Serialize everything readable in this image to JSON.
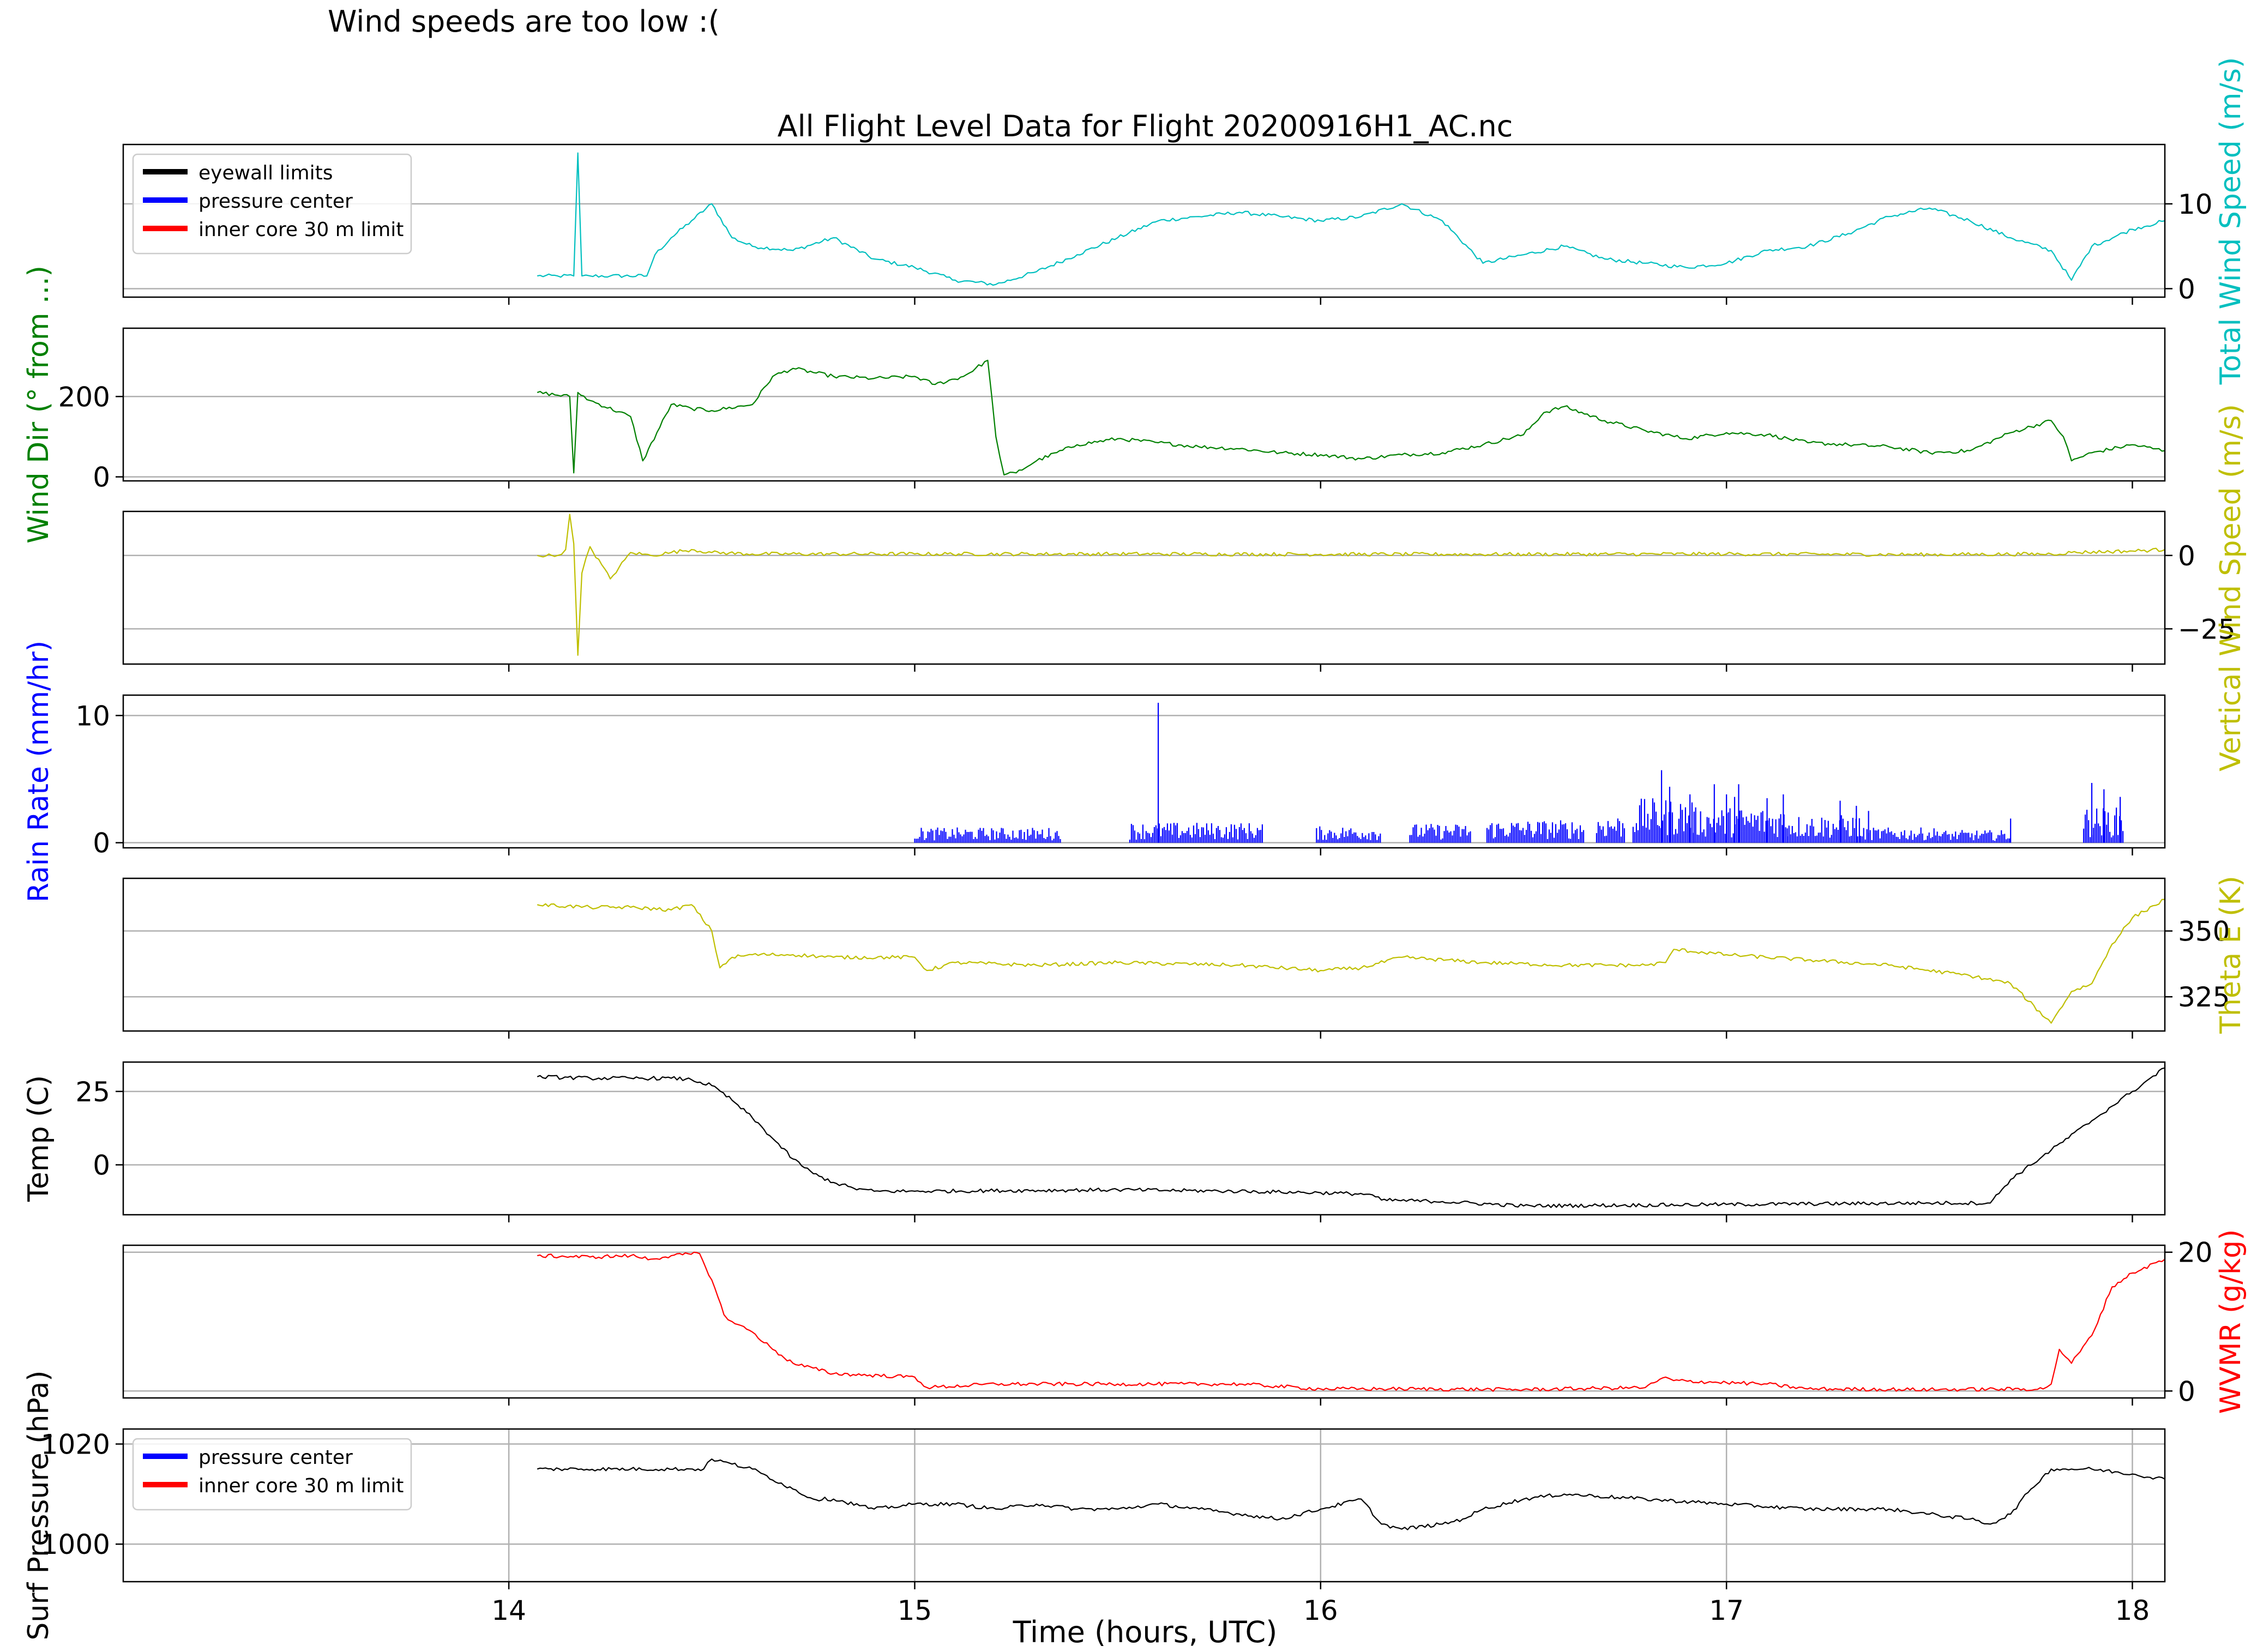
{
  "header_note": "Wind speeds are too low :(",
  "chart_data": {
    "type": "line",
    "title": "All Flight Level Data for Flight 20200916H1_AC.nc",
    "xlabel": "Time (hours, UTC)",
    "xlim": [
      13.05,
      18.08
    ],
    "x_ticks": [
      14,
      15,
      16,
      17,
      18
    ],
    "x_tick_labels": [
      "14",
      "15",
      "16",
      "17",
      "18"
    ],
    "panels": [
      {
        "id": "wind_speed",
        "ylabel": "Total Wind Speed (m/s)",
        "ylabel_side": "right",
        "color": "#00bfbf",
        "ylim": [
          -1,
          17
        ],
        "yticks": [
          0,
          10
        ],
        "ytick_labels": [
          "0",
          "10"
        ],
        "grid": true,
        "legend": {
          "placement": "upper-left",
          "entries": [
            {
              "label": "eyewall limits",
              "color": "#000000"
            },
            {
              "label": "pressure center",
              "color": "#0000ff"
            },
            {
              "label": "inner core 30 m limit",
              "color": "#ff0000"
            }
          ]
        },
        "series": {
          "x": [
            14.07,
            14.12,
            14.16,
            14.17,
            14.18,
            14.2,
            14.25,
            14.34,
            14.36,
            14.4,
            14.45,
            14.5,
            14.55,
            14.6,
            14.7,
            14.8,
            14.9,
            15.0,
            15.1,
            15.2,
            15.3,
            15.4,
            15.5,
            15.6,
            15.7,
            15.8,
            15.9,
            16.0,
            16.1,
            16.2,
            16.3,
            16.4,
            16.5,
            16.6,
            16.7,
            16.8,
            16.9,
            17.0,
            17.1,
            17.2,
            17.3,
            17.4,
            17.5,
            17.6,
            17.7,
            17.8,
            17.85,
            17.9,
            18.0,
            18.08
          ],
          "y": [
            1.5,
            1.5,
            1.5,
            16,
            1.5,
            1.5,
            1.5,
            1.5,
            4,
            6,
            8,
            10,
            6,
            5,
            4.5,
            6,
            3.5,
            2.5,
            1,
            0.5,
            2,
            4,
            6,
            8,
            8.5,
            9,
            8.5,
            8,
            8.5,
            10,
            8,
            3,
            4,
            5,
            3.5,
            3,
            2.5,
            3,
            4.5,
            5,
            6.5,
            8.5,
            9.5,
            8,
            6,
            4.5,
            1,
            5,
            7,
            8
          ]
        }
      },
      {
        "id": "wind_dir",
        "ylabel": "Wind Dir (° from ...)",
        "ylabel_side": "left",
        "color": "#008000",
        "ylim": [
          -10,
          370
        ],
        "yticks": [
          0,
          200
        ],
        "ytick_labels": [
          "0",
          "200"
        ],
        "grid": true,
        "series": {
          "x": [
            14.07,
            14.15,
            14.16,
            14.17,
            14.2,
            14.3,
            14.33,
            14.4,
            14.45,
            14.5,
            14.6,
            14.65,
            14.7,
            14.8,
            14.9,
            15.0,
            15.05,
            15.12,
            15.18,
            15.2,
            15.22,
            15.25,
            15.3,
            15.4,
            15.5,
            15.6,
            15.7,
            15.8,
            15.9,
            16.0,
            16.1,
            16.2,
            16.3,
            16.4,
            16.5,
            16.55,
            16.6,
            16.7,
            16.8,
            16.9,
            17.0,
            17.1,
            17.2,
            17.3,
            17.4,
            17.5,
            17.6,
            17.7,
            17.8,
            17.83,
            17.85,
            17.9,
            18.0,
            18.08
          ],
          "y": [
            210,
            200,
            10,
            210,
            190,
            150,
            40,
            180,
            170,
            165,
            180,
            250,
            270,
            250,
            245,
            250,
            230,
            250,
            290,
            100,
            5,
            10,
            40,
            80,
            95,
            85,
            75,
            70,
            60,
            55,
            45,
            55,
            60,
            80,
            105,
            160,
            175,
            140,
            115,
            95,
            110,
            105,
            85,
            80,
            75,
            60,
            65,
            110,
            140,
            100,
            40,
            60,
            80,
            65
          ]
        }
      },
      {
        "id": "vertical_wind",
        "ylabel": "Vertical Wind Speed (m/s)",
        "ylabel_side": "right",
        "color": "#bfbf00",
        "ylim": [
          -37,
          15
        ],
        "yticks": [
          0,
          -25
        ],
        "ytick_labels": [
          "0",
          "−25"
        ],
        "grid": true,
        "series": {
          "x": [
            14.07,
            14.12,
            14.14,
            14.15,
            14.16,
            14.17,
            14.18,
            14.2,
            14.25,
            14.3,
            14.35,
            14.4,
            14.45,
            14.5,
            14.6,
            15.0,
            15.5,
            16.0,
            16.5,
            17.0,
            17.5,
            17.8,
            17.85,
            18.0,
            18.08
          ],
          "y": [
            0,
            0,
            2,
            14,
            4,
            -34,
            -6,
            3,
            -8,
            1,
            0,
            1,
            2,
            1,
            0.5,
            0.5,
            0.5,
            0.4,
            0.4,
            0.5,
            0.3,
            0.5,
            1,
            1.5,
            2
          ]
        }
      },
      {
        "id": "rain_rate",
        "ylabel": "Rain Rate (mm/hr)",
        "ylabel_side": "left",
        "color": "#0000ff",
        "ylim": [
          -0.4,
          11.6
        ],
        "yticks": [
          0,
          10
        ],
        "ytick_labels": [
          "0",
          "10"
        ],
        "grid": true,
        "segments": [
          [
            15.0,
            15.36,
            1.2
          ],
          [
            15.53,
            15.86,
            1.6
          ],
          [
            15.99,
            16.15,
            1.3
          ],
          [
            16.22,
            16.37,
            1.5
          ],
          [
            16.41,
            16.65,
            1.8
          ],
          [
            16.68,
            16.75,
            2.2
          ],
          [
            16.77,
            16.92,
            3.5
          ],
          [
            16.92,
            17.15,
            2.8
          ],
          [
            17.15,
            17.33,
            2.2
          ],
          [
            17.33,
            17.52,
            1.2
          ],
          [
            17.52,
            17.7,
            1.0
          ],
          [
            17.88,
            17.98,
            2.8
          ]
        ],
        "spikes": {
          "x": [
            15.6,
            16.84,
            16.86,
            16.91,
            16.97,
            17.0,
            17.02,
            17.03,
            17.1,
            17.14,
            17.28,
            17.32,
            17.35,
            17.7,
            17.9,
            17.93,
            17.97
          ],
          "y": [
            11,
            5.7,
            4.4,
            3.8,
            4.6,
            3.8,
            3.6,
            4.6,
            3.5,
            3.8,
            3.3,
            2.9,
            2.5,
            1.9,
            4.7,
            4.2,
            3.6
          ]
        }
      },
      {
        "id": "theta_e",
        "ylabel": "Theta E (K)",
        "ylabel_side": "right",
        "color": "#bfbf00",
        "ylim": [
          312,
          370
        ],
        "yticks": [
          350,
          325
        ],
        "ytick_labels": [
          "350",
          "325"
        ],
        "grid": true,
        "series": {
          "x": [
            14.07,
            14.2,
            14.3,
            14.4,
            14.45,
            14.5,
            14.52,
            14.55,
            14.6,
            14.7,
            14.8,
            15.0,
            15.03,
            15.1,
            15.3,
            15.5,
            15.8,
            16.0,
            16.1,
            16.2,
            16.4,
            16.6,
            16.8,
            16.85,
            16.87,
            17.0,
            17.2,
            17.4,
            17.6,
            17.7,
            17.8,
            17.82,
            17.85,
            17.9,
            17.95,
            18.0,
            18.08
          ],
          "y": [
            360,
            359,
            359,
            358,
            360,
            350,
            336,
            340,
            341,
            341,
            340,
            340,
            335,
            338,
            337,
            338,
            337,
            335,
            336,
            340,
            338,
            337,
            337,
            338,
            343,
            341,
            339,
            337,
            333,
            330,
            315,
            320,
            327,
            330,
            345,
            355,
            362
          ]
        }
      },
      {
        "id": "temp",
        "ylabel": "Temp (C)",
        "ylabel_side": "left",
        "color": "#000000",
        "ylim": [
          -17,
          35
        ],
        "yticks": [
          0,
          25
        ],
        "ytick_labels": [
          "0",
          "25"
        ],
        "grid": true,
        "series": {
          "x": [
            14.07,
            14.2,
            14.3,
            14.4,
            14.45,
            14.5,
            14.55,
            14.6,
            14.65,
            14.7,
            14.75,
            14.8,
            14.85,
            14.9,
            15.0,
            15.5,
            15.8,
            16.0,
            16.12,
            16.15,
            16.3,
            16.5,
            17.0,
            17.5,
            17.65,
            17.7,
            17.8,
            17.9,
            17.95,
            18.0,
            18.08
          ],
          "y": [
            30,
            29.5,
            29.5,
            29.5,
            29,
            27,
            22,
            16,
            9,
            2,
            -3,
            -6,
            -8,
            -9,
            -9,
            -8.5,
            -9,
            -9.5,
            -10,
            -12,
            -12.5,
            -14,
            -13.5,
            -13,
            -13,
            -5,
            5,
            15,
            20,
            25,
            33
          ]
        }
      },
      {
        "id": "wvmr",
        "ylabel": "WVMR (g/kg)",
        "ylabel_side": "right",
        "color": "#ff0000",
        "ylim": [
          -1,
          21
        ],
        "yticks": [
          0,
          20
        ],
        "ytick_labels": [
          "0",
          "20"
        ],
        "grid": true,
        "series": {
          "x": [
            14.07,
            14.2,
            14.3,
            14.35,
            14.4,
            14.47,
            14.5,
            14.53,
            14.55,
            14.6,
            14.65,
            14.7,
            14.8,
            15.0,
            15.03,
            15.2,
            15.5,
            15.8,
            16.0,
            16.2,
            16.5,
            16.8,
            16.85,
            16.87,
            17.0,
            17.1,
            17.2,
            17.5,
            17.78,
            17.8,
            17.82,
            17.85,
            17.9,
            17.95,
            18.0,
            18.08
          ],
          "y": [
            19.5,
            19.3,
            19.5,
            19,
            19.5,
            19.8,
            16,
            11,
            10,
            8.5,
            6,
            4,
            2.5,
            2,
            0.5,
            1,
            1,
            1,
            0.3,
            0.3,
            0.2,
            0.5,
            2,
            1.5,
            1.2,
            1,
            0.3,
            0.2,
            0.3,
            1,
            6,
            4,
            8,
            15,
            17,
            19
          ]
        }
      },
      {
        "id": "surf_pressure",
        "ylabel": "Surf Pressure (hPa)",
        "ylabel_side": "left",
        "color": "#000000",
        "ylim": [
          992.5,
          1023
        ],
        "yticks": [
          1000,
          1020
        ],
        "ytick_labels": [
          "1000",
          "1020"
        ],
        "grid": true,
        "vgrid": true,
        "legend": {
          "placement": "upper-left",
          "entries": [
            {
              "label": "pressure center",
              "color": "#0000ff"
            },
            {
              "label": "inner core 30 m limit",
              "color": "#ff0000"
            }
          ]
        },
        "series": {
          "x": [
            14.07,
            14.3,
            14.48,
            14.5,
            14.55,
            14.6,
            14.7,
            14.75,
            14.8,
            14.9,
            15.0,
            15.1,
            15.2,
            15.3,
            15.4,
            15.5,
            15.6,
            15.7,
            15.8,
            15.9,
            16.0,
            16.1,
            16.15,
            16.2,
            16.3,
            16.35,
            16.4,
            16.5,
            16.6,
            16.8,
            17.0,
            17.2,
            17.4,
            17.5,
            17.6,
            17.65,
            17.7,
            17.75,
            17.8,
            17.9,
            18.0,
            18.08
          ],
          "y": [
            1015,
            1015,
            1015,
            1017,
            1016,
            1015,
            1011,
            1009,
            1009,
            1007,
            1008,
            1008,
            1007,
            1008,
            1007,
            1007,
            1008,
            1007,
            1006,
            1005,
            1007,
            1009,
            1004,
            1003,
            1004,
            1005,
            1007,
            1009,
            1010,
            1009,
            1008,
            1007,
            1007,
            1006,
            1005,
            1004,
            1006,
            1011,
            1015,
            1015,
            1014,
            1013
          ]
        }
      }
    ]
  }
}
